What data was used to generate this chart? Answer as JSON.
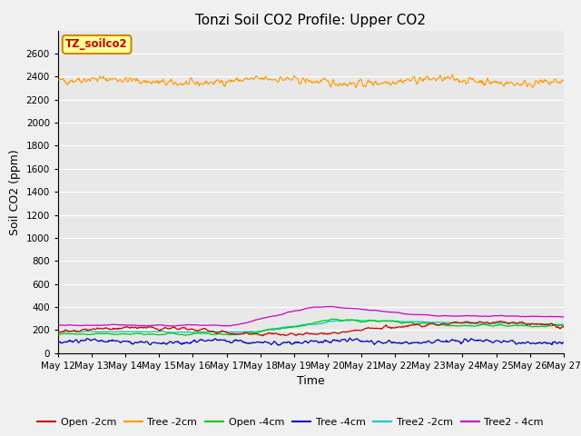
{
  "title": "Tonzi Soil CO2 Profile: Upper CO2",
  "xlabel": "Time",
  "ylabel": "Soil CO2 (ppm)",
  "ylim": [
    0,
    2800
  ],
  "yticks": [
    0,
    200,
    400,
    600,
    800,
    1000,
    1200,
    1400,
    1600,
    1800,
    2000,
    2200,
    2400,
    2600
  ],
  "x_start": 12,
  "x_end": 27,
  "x_ticks": [
    12,
    13,
    14,
    15,
    16,
    17,
    18,
    19,
    20,
    21,
    22,
    23,
    24,
    25,
    26,
    27
  ],
  "x_tick_labels": [
    "May 12",
    "May 13",
    "May 14",
    "May 15",
    "May 16",
    "May 17",
    "May 18",
    "May 19",
    "May 20",
    "May 21",
    "May 22",
    "May 23",
    "May 24",
    "May 25",
    "May 26",
    "May 27"
  ],
  "legend_label": "TZ_soilco2",
  "legend_box_color": "#ffff99",
  "legend_box_border": "#cc8800",
  "legend_text_color": "#cc0000",
  "series_colors": {
    "Open -2cm": "#cc0000",
    "Tree -2cm": "#ff9900",
    "Open -4cm": "#00cc00",
    "Tree -4cm": "#0000cc",
    "Tree2 -2cm": "#00cccc",
    "Tree2 - 4cm": "#cc00cc"
  },
  "background_color": "#e8e8e8",
  "grid_color": "#ffffff",
  "fig_bg_color": "#f0f0f0",
  "title_fontsize": 11,
  "axis_label_fontsize": 9,
  "tick_fontsize": 7.5,
  "legend_fontsize": 8
}
